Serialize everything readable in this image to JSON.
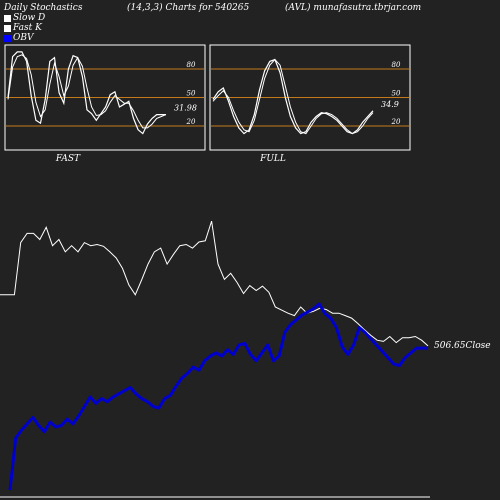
{
  "header": {
    "title": "Daily Stochastics",
    "params": "(14,3,3) Charts for 540265",
    "symbol": "(AVL) munafasutra.tbrjar.com"
  },
  "legend": [
    {
      "label": "Slow  D",
      "color": "#ffffff"
    },
    {
      "label": "Fast K",
      "color": "#ffffff"
    },
    {
      "label": "OBV",
      "color": "#0000ff"
    }
  ],
  "colors": {
    "background": "#222222",
    "panel_border": "#ffffff",
    "level_line": "#c47a1a",
    "stoch_line": "#ffffff",
    "price_line": "#ffffff",
    "obv_line": "#0000cc"
  },
  "chart_data": [
    {
      "type": "line",
      "title": "FAST",
      "ylim": [
        0,
        100
      ],
      "y_ticks": [
        "80",
        "50",
        "20"
      ],
      "levels": [
        80,
        50,
        20
      ],
      "last_value_label": "31.98",
      "series": [
        {
          "name": "Fast K",
          "values": [
            50,
            93,
            98,
            98,
            88,
            52,
            26,
            23,
            48,
            88,
            92,
            55,
            44,
            80,
            94,
            92,
            72,
            37,
            33,
            26,
            33,
            40,
            53,
            56,
            40,
            43,
            46,
            28,
            16,
            12,
            22,
            28,
            32,
            32,
            32
          ]
        },
        {
          "name": "Slow D",
          "values": [
            48,
            82,
            93,
            95,
            91,
            74,
            45,
            30,
            37,
            64,
            86,
            72,
            52,
            62,
            84,
            92,
            83,
            60,
            40,
            31,
            32,
            36,
            45,
            52,
            48,
            44,
            44,
            36,
            26,
            18,
            18,
            22,
            28,
            30,
            32
          ]
        }
      ]
    },
    {
      "type": "line",
      "title": "FULL",
      "ylim": [
        0,
        100
      ],
      "y_ticks": [
        "80",
        "50",
        "20"
      ],
      "levels": [
        80,
        50,
        20
      ],
      "last_value_label": "34.9",
      "series": [
        {
          "name": "Fast K",
          "values": [
            48,
            56,
            60,
            46,
            30,
            18,
            12,
            16,
            32,
            58,
            78,
            88,
            90,
            76,
            50,
            30,
            18,
            12,
            14,
            24,
            30,
            34,
            33,
            30,
            26,
            20,
            14,
            12,
            16,
            24,
            30,
            36
          ]
        },
        {
          "name": "Slow D",
          "values": [
            46,
            52,
            57,
            50,
            36,
            24,
            16,
            14,
            26,
            48,
            70,
            84,
            90,
            84,
            62,
            40,
            24,
            14,
            12,
            20,
            28,
            33,
            34,
            32,
            28,
            22,
            16,
            12,
            14,
            20,
            28,
            34
          ]
        }
      ]
    },
    {
      "type": "line",
      "title": "",
      "last_value_label": "506.65Close",
      "series": [
        {
          "name": "Close",
          "values": [
            590,
            590,
            675,
            690,
            690,
            680,
            700,
            670,
            680,
            660,
            670,
            660,
            675,
            670,
            672,
            669,
            660,
            650,
            633,
            606,
            590,
            614,
            640,
            660,
            666,
            640,
            656,
            670,
            672,
            666,
            676,
            678,
            710,
            640,
            615,
            625,
            610,
            592,
            605,
            597,
            604,
            594,
            570,
            565,
            560,
            556,
            570,
            560,
            563,
            568,
            566,
            560,
            560,
            556,
            552,
            543,
            533,
            524,
            516,
            514,
            522,
            512,
            520,
            520,
            522,
            516,
            506.65
          ]
        },
        {
          "name": "OBV",
          "values": [
            -3,
            -1.35,
            -1.1,
            -0.9,
            -0.7,
            -0.95,
            -1.15,
            -0.85,
            -1.0,
            -0.95,
            -0.75,
            -0.9,
            -0.65,
            -0.35,
            -0.05,
            -0.25,
            -0.1,
            -0.2,
            -0.05,
            0.05,
            0.15,
            0.25,
            0.05,
            -0.1,
            -0.2,
            -0.35,
            -0.4,
            -0.1,
            0.0,
            0.3,
            0.55,
            0.7,
            0.9,
            0.8,
            1.1,
            1.25,
            1.35,
            1.25,
            1.45,
            1.3,
            1.6,
            1.65,
            1.3,
            1.1,
            1.35,
            1.6,
            1.1,
            1.25,
            2.0,
            2.25,
            2.4,
            2.55,
            2.65,
            2.75,
            2.9,
            2.6,
            2.45,
            2.15,
            1.55,
            1.3,
            1.6,
            2.15,
            2.0,
            1.8,
            1.6,
            1.4,
            1.2,
            1.0,
            0.95,
            1.2,
            1.35,
            1.5,
            1.5,
            1.5
          ]
        }
      ]
    }
  ]
}
